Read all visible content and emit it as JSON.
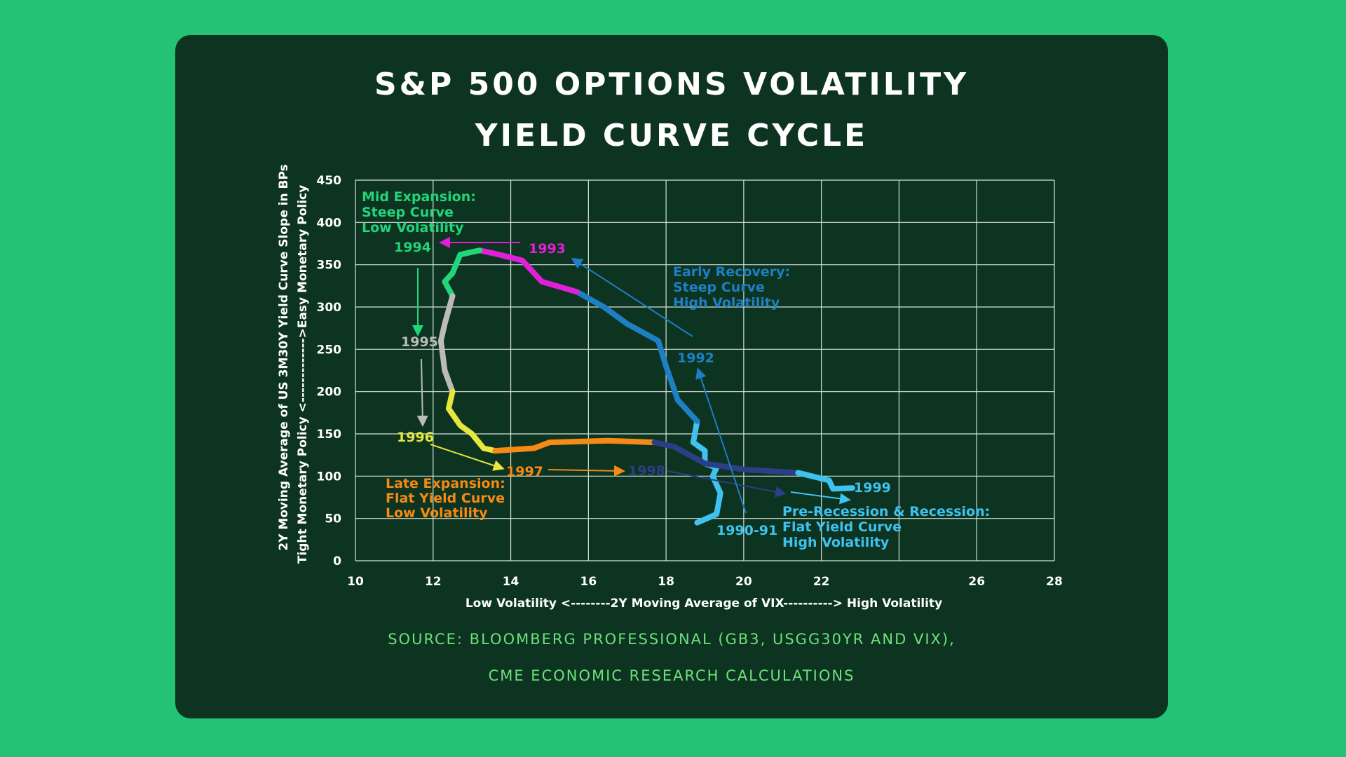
{
  "title_line1": "S&P 500 OPTIONS VOLATILITY",
  "title_line2": "YIELD CURVE CYCLE",
  "source_line1": "SOURCE: BLOOMBERG PROFESSIONAL (GB3, USGG30YR AND VIX),",
  "source_line2": "CME ECONOMIC RESEARCH CALCULATIONS",
  "chart_data": {
    "type": "line",
    "xlabel": "Low Volatility <--------2Y Moving Average of VIX----------> High Volatility",
    "ylabel_line1": "2Y Moving Average of US 3M30Y Yield Curve Slope in BPs",
    "ylabel_line2": "Tight Monetary Policy <------------->Easy Monetary Policy",
    "xlim": [
      10,
      28
    ],
    "ylim": [
      0,
      450
    ],
    "x_ticks": [
      10,
      12,
      14,
      16,
      18,
      20,
      22,
      26,
      28
    ],
    "x_grid": [
      10,
      12,
      14,
      16,
      18,
      20,
      22,
      24,
      26,
      28
    ],
    "y_ticks": [
      0,
      50,
      100,
      150,
      200,
      250,
      300,
      350,
      400,
      450
    ],
    "grid": true,
    "series": [
      {
        "name": "1990-91",
        "color": "#3ec3f0",
        "points": [
          [
            18.8,
            45
          ],
          [
            19.3,
            55
          ],
          [
            19.4,
            80
          ],
          [
            19.2,
            100
          ],
          [
            19.3,
            110
          ],
          [
            19.0,
            115
          ],
          [
            19.0,
            130
          ],
          [
            18.7,
            140
          ],
          [
            18.8,
            165
          ]
        ]
      },
      {
        "name": "1992",
        "color": "#1f7fc4",
        "points": [
          [
            18.8,
            165
          ],
          [
            18.3,
            190
          ],
          [
            18.0,
            230
          ],
          [
            17.8,
            260
          ],
          [
            17.0,
            280
          ],
          [
            16.4,
            300
          ],
          [
            15.7,
            318
          ]
        ]
      },
      {
        "name": "1993",
        "color": "#e020d8",
        "points": [
          [
            15.7,
            318
          ],
          [
            14.8,
            330
          ],
          [
            14.3,
            355
          ],
          [
            13.7,
            362
          ],
          [
            13.2,
            367
          ]
        ]
      },
      {
        "name": "1994",
        "color": "#22d47a",
        "points": [
          [
            13.2,
            367
          ],
          [
            12.7,
            362
          ],
          [
            12.5,
            340
          ],
          [
            12.3,
            330
          ],
          [
            12.5,
            313
          ]
        ]
      },
      {
        "name": "1995",
        "color": "#bbbbbb",
        "points": [
          [
            12.5,
            313
          ],
          [
            12.3,
            280
          ],
          [
            12.2,
            260
          ],
          [
            12.3,
            225
          ],
          [
            12.5,
            200
          ]
        ]
      },
      {
        "name": "1996",
        "color": "#e6e63c",
        "points": [
          [
            12.5,
            200
          ],
          [
            12.4,
            180
          ],
          [
            12.7,
            160
          ],
          [
            13.0,
            150
          ],
          [
            13.3,
            133
          ],
          [
            13.6,
            130
          ]
        ]
      },
      {
        "name": "1997",
        "color": "#f58a14",
        "points": [
          [
            13.6,
            130
          ],
          [
            14.6,
            133
          ],
          [
            15.0,
            140
          ],
          [
            16.5,
            142
          ],
          [
            17.7,
            140
          ]
        ]
      },
      {
        "name": "1998",
        "color": "#2c3e86",
        "points": [
          [
            17.7,
            140
          ],
          [
            18.2,
            135
          ],
          [
            19.0,
            115
          ],
          [
            20.0,
            108
          ],
          [
            21.4,
            104
          ]
        ]
      },
      {
        "name": "1999",
        "color": "#3ec3f0",
        "points": [
          [
            21.4,
            104
          ],
          [
            22.2,
            95
          ],
          [
            22.3,
            85
          ],
          [
            22.8,
            86
          ]
        ]
      }
    ],
    "labels": [
      {
        "text": "Mid Expansion:",
        "color": "#22d47a"
      },
      {
        "text": "Steep Curve",
        "color": "#22d47a"
      },
      {
        "text": "Low Volatility",
        "color": "#22d47a"
      },
      {
        "text": "1994",
        "color": "#22d47a"
      },
      {
        "text": "1993",
        "color": "#e020d8"
      },
      {
        "text": "Early Recovery:",
        "color": "#1f7fc4"
      },
      {
        "text": "Steep Curve",
        "color": "#1f7fc4"
      },
      {
        "text": "High Volatility",
        "color": "#1f7fc4"
      },
      {
        "text": "1995",
        "color": "#bbbbbb"
      },
      {
        "text": "1992",
        "color": "#1f7fc4"
      },
      {
        "text": "1996",
        "color": "#e6e63c"
      },
      {
        "text": "1997",
        "color": "#f58a14"
      },
      {
        "text": "1998",
        "color": "#2c3e86"
      },
      {
        "text": "1999",
        "color": "#3ec3f0"
      },
      {
        "text": "Late Expansion:",
        "color": "#f58a14"
      },
      {
        "text": "Flat Yield Curve",
        "color": "#f58a14"
      },
      {
        "text": "Low Volatility",
        "color": "#f58a14"
      },
      {
        "text": "Pre-Recession & Recession:",
        "color": "#3ec3f0"
      },
      {
        "text": "Flat Yield Curve",
        "color": "#3ec3f0"
      },
      {
        "text": "High Volatility",
        "color": "#3ec3f0"
      },
      {
        "text": "1990-91",
        "color": "#3ec3f0"
      }
    ]
  }
}
